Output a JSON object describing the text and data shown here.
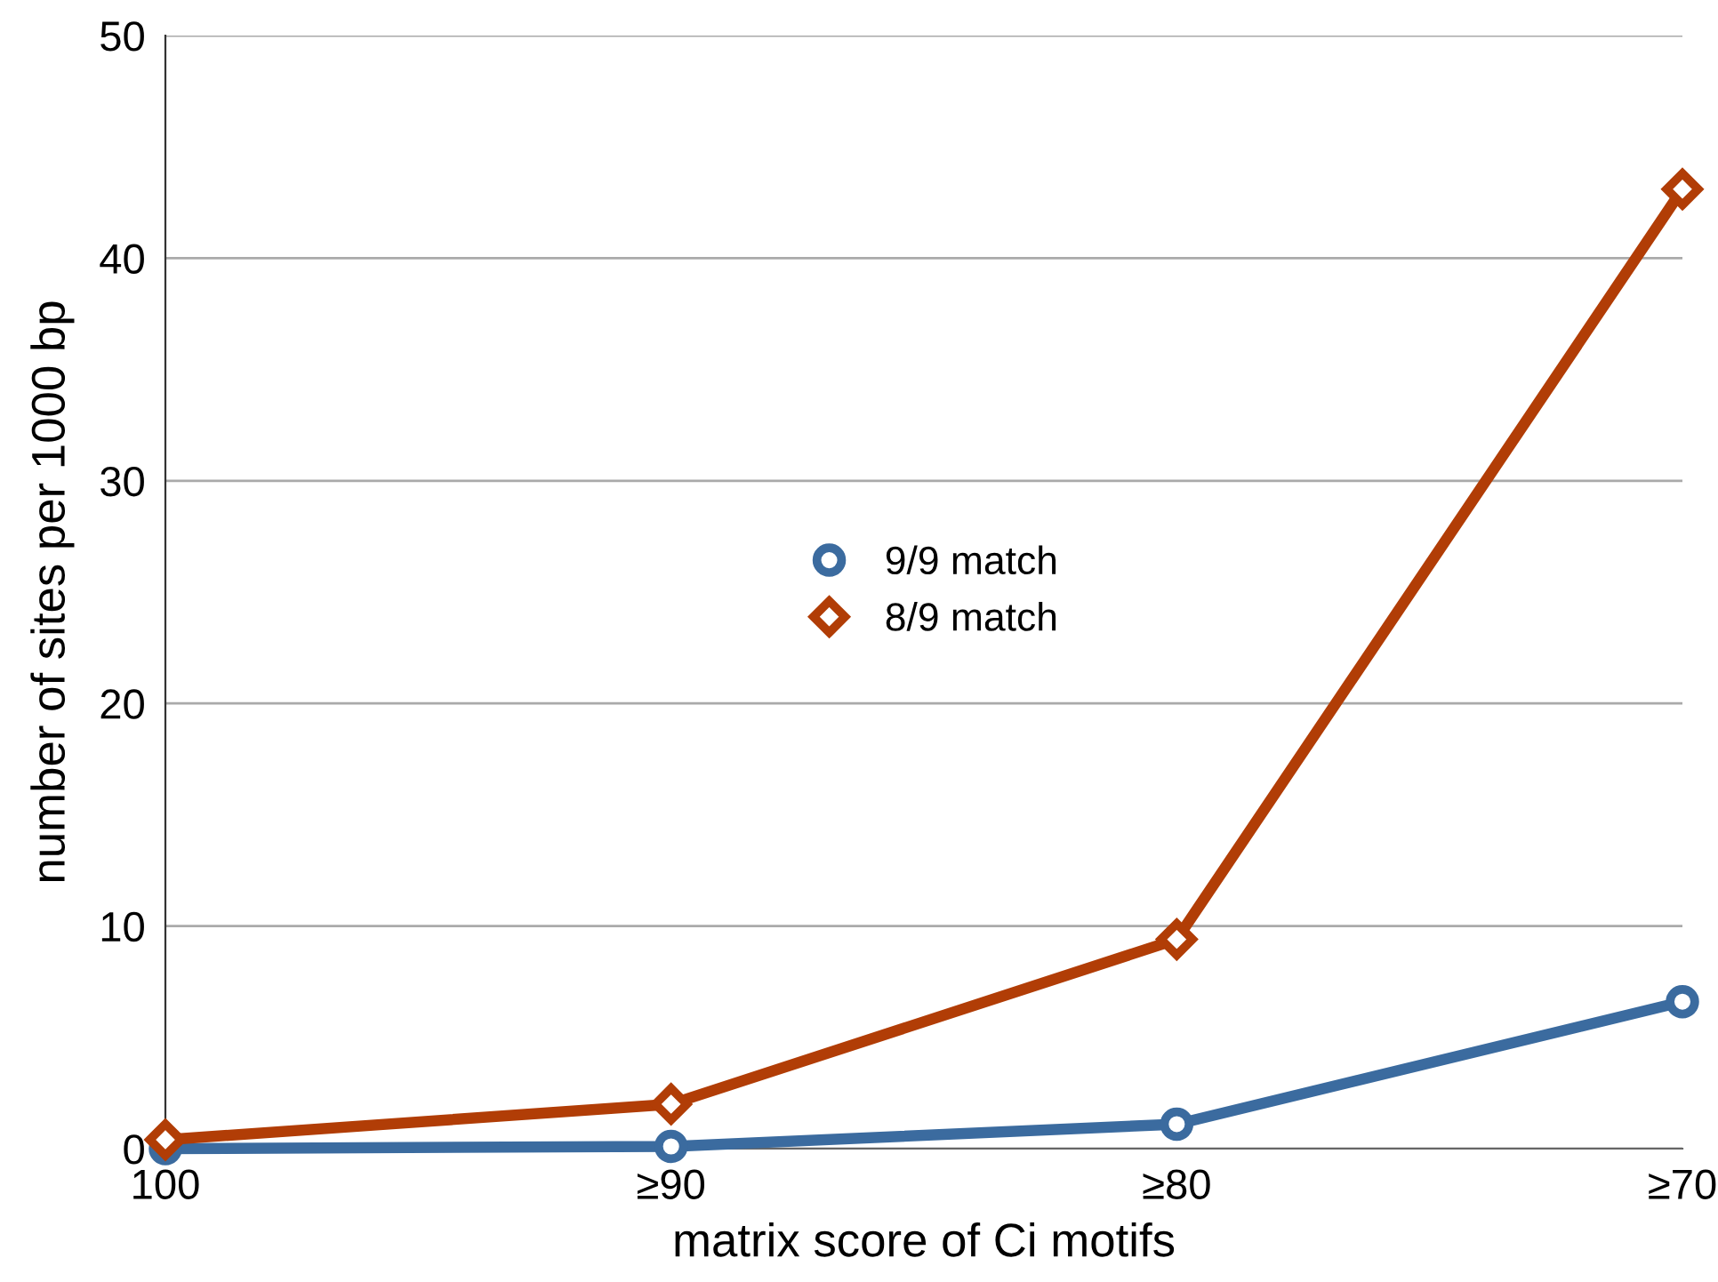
{
  "chart_data": {
    "type": "line",
    "xlabel": "matrix score of Ci motifs",
    "ylabel": "number of sites per 1000 bp",
    "categories": [
      "100",
      "≥90",
      "≥80",
      "≥70"
    ],
    "series": [
      {
        "name": "9/9 match",
        "color": "#3b6b9f",
        "values": [
          0,
          0.1,
          1.1,
          6.6
        ],
        "marker": "circle"
      },
      {
        "name": "8/9 match",
        "color": "#b13d06",
        "values": [
          0.4,
          2.0,
          9.4,
          43.1
        ],
        "marker": "diamond"
      }
    ],
    "ylim": [
      0,
      50
    ],
    "yticks": [
      0,
      10,
      20,
      30,
      40,
      50
    ],
    "grid": "y",
    "legend": "center",
    "line_style": "solid"
  }
}
